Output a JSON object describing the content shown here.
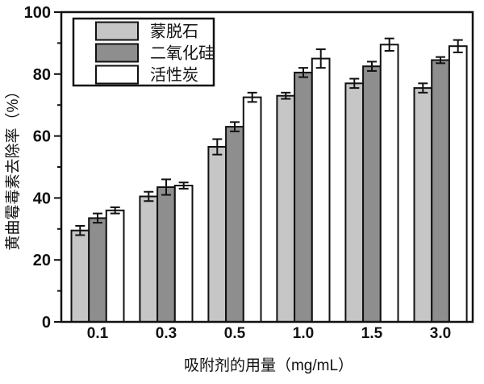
{
  "figure": {
    "background": "#ffffff",
    "axis_color": "#111111"
  },
  "chart_data": {
    "type": "bar",
    "title": "",
    "xlabel": "吸附剂的用量（mg/mL）",
    "ylabel": "黄曲霉毒素去除率（%）",
    "categories": [
      "0.1",
      "0.3",
      "0.5",
      "1.0",
      "1.5",
      "3.0"
    ],
    "series": [
      {
        "name": "蒙脱石",
        "color": "#c6c6c6",
        "values": [
          29.5,
          40.5,
          56.5,
          73,
          77,
          75.5
        ],
        "errors": [
          1.5,
          1.5,
          2.5,
          1,
          1.5,
          1.5
        ]
      },
      {
        "name": "二氧化硅",
        "color": "#8e8e8e",
        "values": [
          33.5,
          43.5,
          63,
          80.5,
          82.5,
          84.5
        ],
        "errors": [
          1.5,
          2.5,
          1.5,
          1.5,
          1.5,
          1
        ]
      },
      {
        "name": "活性炭",
        "color": "#ffffff",
        "values": [
          36,
          44,
          72.5,
          85,
          89.5,
          89
        ],
        "errors": [
          1,
          1,
          1.5,
          3,
          2,
          2
        ]
      }
    ],
    "ylim": [
      0,
      100
    ],
    "yticks": [
      0,
      20,
      40,
      60,
      80,
      100
    ],
    "minor_tick_step": 10,
    "grid": false,
    "error_bars": true,
    "legend_position": "top-left",
    "bar_edge_color": "#111111"
  }
}
